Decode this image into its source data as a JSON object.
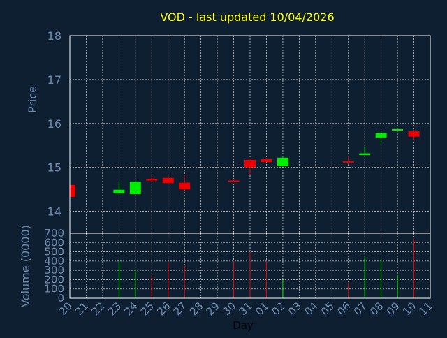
{
  "title": "VOD - last updated 10/04/2026",
  "colors": {
    "background": "#0f1f32",
    "title": "#ffff00",
    "axis_text": "#6d8bb0",
    "grid": "#c8c8c8",
    "frame": "#ffffff",
    "up": "#00ee00",
    "down": "#ee0000"
  },
  "chart_data": [
    {
      "type": "candlestick",
      "ylabel": "Price",
      "ylim": [
        13.5,
        18
      ],
      "yticks": [
        "14",
        "15",
        "16",
        "17",
        "18"
      ],
      "categories": [
        "20",
        "21",
        "22",
        "23",
        "24",
        "25",
        "26",
        "27",
        "28",
        "29",
        "30",
        "31",
        "01",
        "02",
        "03",
        "04",
        "05",
        "06",
        "07",
        "08",
        "09",
        "10",
        "11"
      ],
      "candles": [
        {
          "day": "20",
          "open": 14.6,
          "close": 14.33,
          "high": 14.6,
          "low": 14.33
        },
        {
          "day": "23",
          "open": 14.41,
          "close": 14.49,
          "high": 14.67,
          "low": 14.41
        },
        {
          "day": "24",
          "open": 14.39,
          "close": 14.67,
          "high": 14.7,
          "low": 14.39
        },
        {
          "day": "25",
          "open": 14.74,
          "close": 14.7,
          "high": 14.8,
          "low": 14.68
        },
        {
          "day": "26",
          "open": 14.76,
          "close": 14.64,
          "high": 14.78,
          "low": 14.62
        },
        {
          "day": "27",
          "open": 14.65,
          "close": 14.5,
          "high": 14.83,
          "low": 14.48
        },
        {
          "day": "30",
          "open": 14.7,
          "close": 14.69,
          "high": 14.72,
          "low": 14.67
        },
        {
          "day": "31",
          "open": 15.17,
          "close": 15.0,
          "high": 15.2,
          "low": 14.83
        },
        {
          "day": "01",
          "open": 15.19,
          "close": 15.12,
          "high": 15.22,
          "low": 15.12
        },
        {
          "day": "02",
          "open": 15.03,
          "close": 15.22,
          "high": 15.25,
          "low": 15.02
        },
        {
          "day": "06",
          "open": 15.14,
          "close": 15.12,
          "high": 15.25,
          "low": 15.07
        },
        {
          "day": "07",
          "open": 15.28,
          "close": 15.32,
          "high": 15.48,
          "low": 15.27
        },
        {
          "day": "08",
          "open": 15.68,
          "close": 15.78,
          "high": 15.8,
          "low": 15.55
        },
        {
          "day": "09",
          "open": 15.84,
          "close": 15.87,
          "high": 15.9,
          "low": 15.82
        },
        {
          "day": "10",
          "open": 15.82,
          "close": 15.7,
          "high": 15.86,
          "low": 15.62
        }
      ]
    },
    {
      "type": "bar",
      "xlabel": "Day",
      "ylabel": "Volume (0000)",
      "ylim": [
        0,
        700
      ],
      "yticks": [
        "0",
        "100",
        "200",
        "300",
        "400",
        "500",
        "600",
        "700"
      ],
      "categories": [
        "20",
        "21",
        "22",
        "23",
        "24",
        "25",
        "26",
        "27",
        "28",
        "29",
        "30",
        "31",
        "01",
        "02",
        "03",
        "04",
        "05",
        "06",
        "07",
        "08",
        "09",
        "10",
        "11"
      ],
      "bars": [
        {
          "day": "20",
          "value": 0,
          "direction": "down"
        },
        {
          "day": "23",
          "value": 400,
          "direction": "up"
        },
        {
          "day": "24",
          "value": 310,
          "direction": "up"
        },
        {
          "day": "25",
          "value": 240,
          "direction": "down"
        },
        {
          "day": "26",
          "value": 390,
          "direction": "down"
        },
        {
          "day": "27",
          "value": 350,
          "direction": "down"
        },
        {
          "day": "30",
          "value": 400,
          "direction": "down"
        },
        {
          "day": "31",
          "value": 500,
          "direction": "down"
        },
        {
          "day": "01",
          "value": 400,
          "direction": "down"
        },
        {
          "day": "02",
          "value": 200,
          "direction": "up"
        },
        {
          "day": "06",
          "value": 170,
          "direction": "down"
        },
        {
          "day": "07",
          "value": 440,
          "direction": "up"
        },
        {
          "day": "08",
          "value": 420,
          "direction": "up"
        },
        {
          "day": "09",
          "value": 250,
          "direction": "up"
        },
        {
          "day": "10",
          "value": 640,
          "direction": "down"
        }
      ]
    }
  ]
}
